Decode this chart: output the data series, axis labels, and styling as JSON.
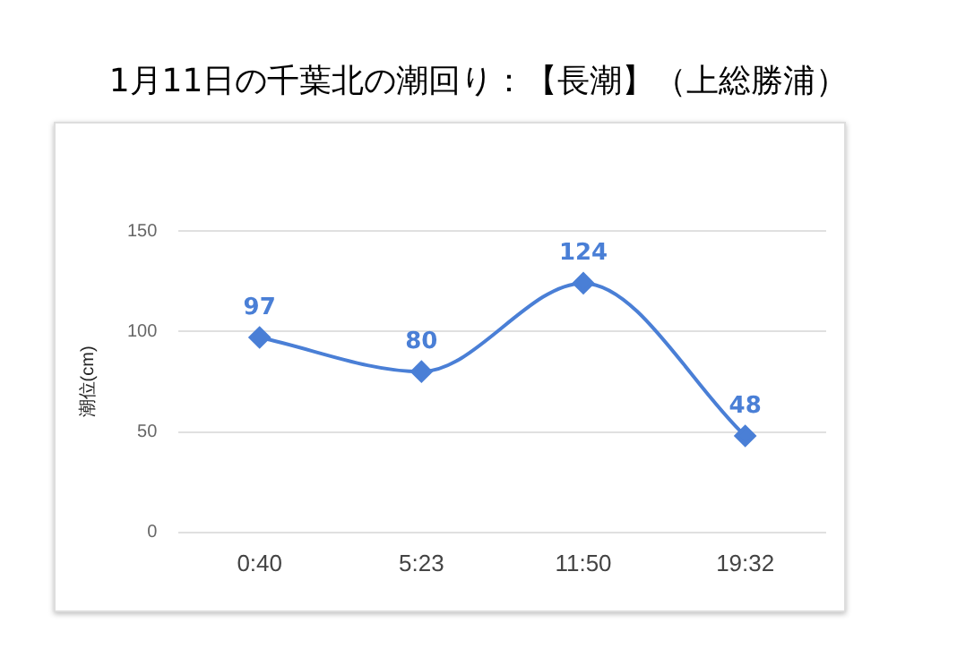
{
  "chart_data": {
    "type": "line",
    "title": "1月11日の千葉北の潮回り：【長潮】（上総勝浦）",
    "ylabel": "潮位(cm)",
    "categories": [
      "0:40",
      "5:23",
      "11:50",
      "19:32"
    ],
    "series": [
      {
        "color": "#4a7fd6",
        "values": [
          97,
          80,
          124,
          48
        ]
      }
    ],
    "ylim": [
      0,
      150
    ],
    "yticks": [
      0,
      50,
      100,
      150
    ],
    "grid": "y",
    "legend": false,
    "marker": "diamond",
    "line_style": "solid",
    "data_labels": true
  }
}
